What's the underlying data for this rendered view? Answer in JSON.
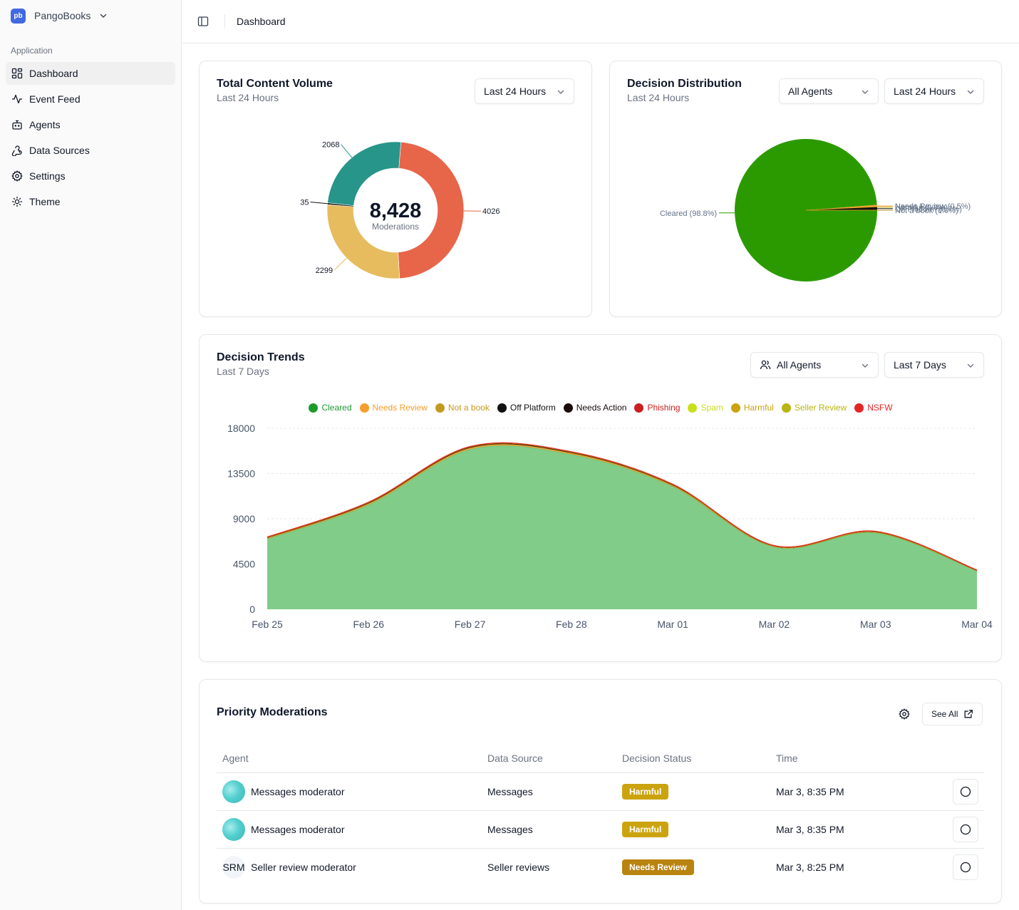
{
  "app": {
    "name": "PangoBooks",
    "logo_text": "pb",
    "section_label": "Application"
  },
  "sidebar": {
    "items": [
      {
        "label": "Dashboard",
        "icon": "dashboard-icon",
        "active": true
      },
      {
        "label": "Event Feed",
        "icon": "activity-icon"
      },
      {
        "label": "Agents",
        "icon": "bot-icon"
      },
      {
        "label": "Data Sources",
        "icon": "webhook-icon"
      },
      {
        "label": "Settings",
        "icon": "gear-icon"
      },
      {
        "label": "Theme",
        "icon": "sun-icon"
      }
    ]
  },
  "topbar": {
    "title": "Dashboard"
  },
  "volume_card": {
    "title": "Total Content Volume",
    "subtitle": "Last 24 Hours",
    "select": "Last 24 Hours",
    "center_value": "8,428",
    "center_label": "Moderations"
  },
  "distribution_card": {
    "title": "Decision Distribution",
    "subtitle": "Last 24 Hours",
    "agent_select": "All Agents",
    "time_select": "Last 24 Hours"
  },
  "trends_card": {
    "title": "Decision Trends",
    "subtitle": "Last 7 Days",
    "agent_select": "All Agents",
    "time_select": "Last 7 Days"
  },
  "priority_card": {
    "title": "Priority Moderations",
    "see_all": "See All",
    "columns": [
      "Agent",
      "Data Source",
      "Decision Status",
      "Time"
    ],
    "rows": [
      {
        "agent": "Messages moderator",
        "avatar": "image",
        "source": "Messages",
        "status": "Harmful",
        "status_color": "#cba30f",
        "time": "Mar 3, 8:35 PM"
      },
      {
        "agent": "Messages moderator",
        "avatar": "image",
        "source": "Messages",
        "status": "Harmful",
        "status_color": "#cba30f",
        "time": "Mar 3, 8:35 PM"
      },
      {
        "agent": "Seller review moderator",
        "avatar": "SRM",
        "source": "Seller reviews",
        "status": "Needs Review",
        "status_color": "#b98310",
        "time": "Mar 3, 8:25 PM"
      }
    ]
  },
  "chart_data": [
    {
      "type": "pie",
      "variant": "donut",
      "categories": [
        "",
        "",
        "",
        ""
      ],
      "values": [
        4026,
        2299,
        35,
        2068
      ],
      "colors": [
        "#e76549",
        "#e6bc5f",
        "#111111",
        "#279589"
      ],
      "data_labels": [
        "4026",
        "2299",
        "35",
        "2068"
      ]
    },
    {
      "type": "pie",
      "categories": [
        "Cleared",
        "Needs Review",
        "Harmful",
        "Off Platform",
        "Not a book"
      ],
      "values": [
        98.8,
        0.5,
        0.0,
        0.7,
        0.0
      ],
      "labels": [
        "Cleared (98.8%)",
        "Needs Review (0.5%)",
        "Harmful (0.0%)",
        "Off Platform (0.7%)",
        "Not a book (0.0%)"
      ],
      "colors": [
        "#2b9a00",
        "#f0a22f",
        "#cba30f",
        "#111111",
        "#c39a1c"
      ]
    },
    {
      "type": "area",
      "stacked": true,
      "x": [
        "Feb 25",
        "Feb 26",
        "Feb 27",
        "Feb 28",
        "Mar 01",
        "Mar 02",
        "Mar 03",
        "Mar 04"
      ],
      "series": [
        {
          "name": "Cleared",
          "color": "#80cc88",
          "text_color": "#1a9c2b",
          "values": [
            7000,
            10400,
            15900,
            15400,
            12200,
            6200,
            7600,
            3800
          ]
        },
        {
          "name": "Needs Review",
          "color": "#f59e2a",
          "values": [
            80,
            120,
            140,
            130,
            110,
            60,
            70,
            40
          ]
        },
        {
          "name": "Not a book",
          "color": "#c39a1c",
          "values": [
            10,
            10,
            10,
            10,
            10,
            5,
            5,
            5
          ]
        },
        {
          "name": "Off Platform",
          "color": "#111111",
          "values": [
            60,
            90,
            100,
            90,
            80,
            40,
            50,
            30
          ]
        },
        {
          "name": "Needs Action",
          "color": "#1a0a0a",
          "values": [
            5,
            5,
            5,
            5,
            5,
            5,
            5,
            5
          ]
        },
        {
          "name": "Phishing",
          "color": "#cc1f1f",
          "values": [
            5,
            5,
            5,
            5,
            5,
            5,
            5,
            5
          ]
        },
        {
          "name": "Spam",
          "color": "#c8e01a",
          "values": [
            5,
            5,
            5,
            5,
            5,
            5,
            5,
            5
          ]
        },
        {
          "name": "Harmful",
          "color": "#cba30f",
          "values": [
            10,
            10,
            10,
            10,
            10,
            5,
            5,
            5
          ]
        },
        {
          "name": "Seller Review",
          "color": "#b8b412",
          "values": [
            5,
            5,
            5,
            5,
            5,
            5,
            5,
            5
          ]
        },
        {
          "name": "NSFW",
          "color": "#e52424",
          "values": [
            5,
            5,
            5,
            5,
            5,
            5,
            5,
            5
          ]
        }
      ],
      "ylim": [
        0,
        18000
      ],
      "yticks": [
        "0",
        "4500",
        "9000",
        "13500",
        "18000"
      ],
      "grid": true,
      "legend": "top-center"
    }
  ]
}
